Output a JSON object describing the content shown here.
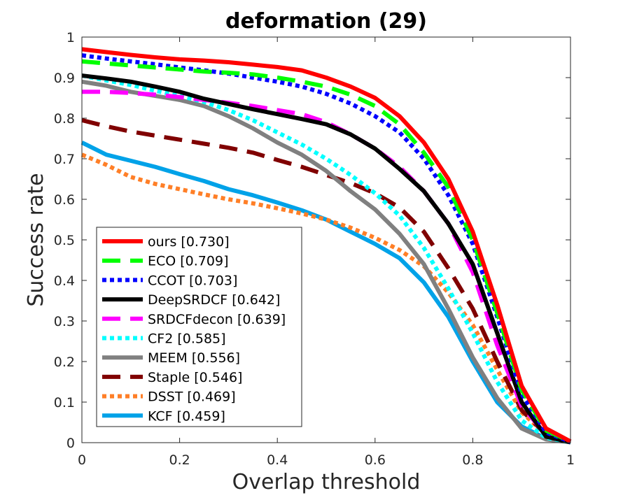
{
  "chart_data": {
    "type": "line",
    "title": "deformation (29)",
    "xlabel": "Overlap threshold",
    "ylabel": "Success rate",
    "xlim": [
      0,
      1
    ],
    "ylim": [
      0,
      1
    ],
    "xticks": [
      "0",
      "0.2",
      "0.4",
      "0.6",
      "0.8",
      "1"
    ],
    "yticks": [
      "0",
      "0.1",
      "0.2",
      "0.3",
      "0.4",
      "0.5",
      "0.6",
      "0.7",
      "0.8",
      "0.9",
      "1"
    ],
    "grid": false,
    "legend_position": "lower-left",
    "x": [
      0,
      0.05,
      0.1,
      0.15,
      0.2,
      0.25,
      0.3,
      0.35,
      0.4,
      0.45,
      0.5,
      0.55,
      0.6,
      0.65,
      0.7,
      0.75,
      0.8,
      0.85,
      0.9,
      0.95,
      1
    ],
    "series": [
      {
        "name": "ours [0.730]",
        "color": "#ff0000",
        "dash": "solid",
        "width": 6,
        "values": [
          0.97,
          0.963,
          0.956,
          0.95,
          0.945,
          0.942,
          0.938,
          0.932,
          0.926,
          0.918,
          0.9,
          0.878,
          0.85,
          0.805,
          0.74,
          0.65,
          0.52,
          0.34,
          0.14,
          0.035,
          0.003
        ]
      },
      {
        "name": "ECO [0.709]",
        "color": "#00ff00",
        "dash": "long",
        "width": 6,
        "values": [
          0.94,
          0.935,
          0.93,
          0.925,
          0.92,
          0.915,
          0.912,
          0.908,
          0.9,
          0.89,
          0.878,
          0.858,
          0.83,
          0.785,
          0.715,
          0.63,
          0.5,
          0.32,
          0.13,
          0.03,
          0.003
        ]
      },
      {
        "name": "CCOT [0.703]",
        "color": "#0000ff",
        "dash": "dot",
        "width": 6,
        "values": [
          0.955,
          0.947,
          0.94,
          0.933,
          0.925,
          0.918,
          0.91,
          0.9,
          0.89,
          0.878,
          0.86,
          0.836,
          0.805,
          0.765,
          0.7,
          0.61,
          0.49,
          0.31,
          0.12,
          0.025,
          0.002
        ]
      },
      {
        "name": "DeepSRDCF [0.642]",
        "color": "#000000",
        "dash": "solid",
        "width": 6,
        "values": [
          0.905,
          0.898,
          0.89,
          0.878,
          0.865,
          0.848,
          0.835,
          0.822,
          0.81,
          0.798,
          0.785,
          0.76,
          0.725,
          0.675,
          0.62,
          0.54,
          0.44,
          0.27,
          0.1,
          0.015,
          0.001
        ]
      },
      {
        "name": "SRDCFdecon [0.639]",
        "color": "#ff00ff",
        "dash": "long",
        "width": 6,
        "values": [
          0.865,
          0.865,
          0.862,
          0.858,
          0.852,
          0.845,
          0.838,
          0.83,
          0.82,
          0.81,
          0.79,
          0.76,
          0.725,
          0.68,
          0.62,
          0.54,
          0.42,
          0.24,
          0.09,
          0.02,
          0.001
        ]
      },
      {
        "name": "CF2 [0.585]",
        "color": "#00ffff",
        "dash": "dot",
        "width": 6,
        "values": [
          0.905,
          0.893,
          0.882,
          0.868,
          0.855,
          0.84,
          0.82,
          0.795,
          0.765,
          0.735,
          0.7,
          0.66,
          0.615,
          0.56,
          0.48,
          0.38,
          0.27,
          0.15,
          0.055,
          0.012,
          0.001
        ]
      },
      {
        "name": "MEEM [0.556]",
        "color": "#808080",
        "dash": "solid",
        "width": 6,
        "values": [
          0.89,
          0.88,
          0.865,
          0.855,
          0.845,
          0.83,
          0.805,
          0.775,
          0.74,
          0.71,
          0.67,
          0.62,
          0.575,
          0.515,
          0.44,
          0.33,
          0.21,
          0.11,
          0.035,
          0.008,
          0.001
        ]
      },
      {
        "name": "Staple [0.546]",
        "color": "#800000",
        "dash": "long",
        "width": 6,
        "values": [
          0.795,
          0.78,
          0.767,
          0.757,
          0.747,
          0.737,
          0.727,
          0.715,
          0.697,
          0.68,
          0.66,
          0.64,
          0.615,
          0.58,
          0.52,
          0.43,
          0.33,
          0.2,
          0.08,
          0.02,
          0.001
        ]
      },
      {
        "name": "DSST [0.469]",
        "color": "#ff7f27",
        "dash": "dot",
        "width": 6,
        "values": [
          0.71,
          0.685,
          0.655,
          0.638,
          0.625,
          0.612,
          0.6,
          0.59,
          0.578,
          0.565,
          0.55,
          0.53,
          0.505,
          0.475,
          0.435,
          0.37,
          0.29,
          0.18,
          0.075,
          0.02,
          0.001
        ]
      },
      {
        "name": "KCF [0.459]",
        "color": "#00a2e8",
        "dash": "solid",
        "width": 6,
        "values": [
          0.74,
          0.71,
          0.695,
          0.68,
          0.662,
          0.645,
          0.625,
          0.61,
          0.592,
          0.573,
          0.55,
          0.52,
          0.49,
          0.455,
          0.395,
          0.31,
          0.2,
          0.1,
          0.04,
          0.01,
          0.001
        ]
      }
    ]
  }
}
